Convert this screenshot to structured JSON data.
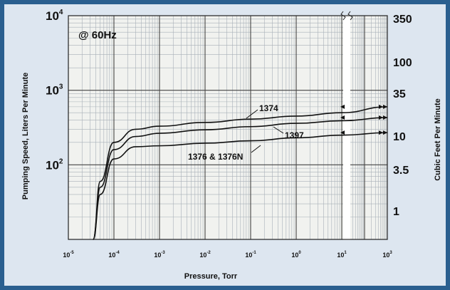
{
  "chart_data": {
    "type": "line",
    "annotation": "@ 60Hz",
    "xlabel": "Pressure, Torr",
    "ylabel_left": "Pumping Speed, Liters Per Minute",
    "ylabel_right": "Cubic Feet Per Minute",
    "x_scale": "log",
    "y_scale": "log",
    "xlim": [
      1e-05,
      1000
    ],
    "ylim": [
      10,
      10000
    ],
    "grid": true,
    "x_ticks": [
      {
        "base": "10",
        "exp": "-5"
      },
      {
        "base": "10",
        "exp": "-4"
      },
      {
        "base": "10",
        "exp": "-3"
      },
      {
        "base": "10",
        "exp": "-2"
      },
      {
        "base": "10",
        "exp": "-1"
      },
      {
        "base": "10",
        "exp": "0"
      },
      {
        "base": "10",
        "exp": "1"
      },
      {
        "base": "10",
        "exp": "3"
      }
    ],
    "y_ticks_left": [
      {
        "base": "10",
        "exp": "4"
      },
      {
        "base": "10",
        "exp": "3"
      },
      {
        "base": "10",
        "exp": "2"
      }
    ],
    "y_ticks_right": [
      "350",
      "100",
      "35",
      "10",
      "3.5",
      "1"
    ],
    "axis_break_x": 10,
    "series": [
      {
        "name": "1374",
        "x": [
          3.5e-05,
          5e-05,
          0.0001,
          0.0003,
          0.001,
          0.01,
          0.1,
          1,
          10,
          1000
        ],
        "y": [
          10,
          60,
          200,
          300,
          330,
          370,
          410,
          450,
          500,
          600
        ]
      },
      {
        "name": "1397",
        "x": [
          3.5e-05,
          5e-05,
          0.0001,
          0.0003,
          0.001,
          0.01,
          0.1,
          1,
          10,
          1000
        ],
        "y": [
          10,
          50,
          160,
          240,
          265,
          295,
          325,
          360,
          390,
          430
        ]
      },
      {
        "name": "1376 & 1376N",
        "x": [
          3.5e-05,
          5e-05,
          0.0001,
          0.0003,
          0.001,
          0.01,
          0.1,
          1,
          10,
          1000
        ],
        "y": [
          10,
          40,
          120,
          175,
          180,
          195,
          210,
          230,
          250,
          270
        ]
      }
    ],
    "colors": {
      "line": "#111111",
      "grid_major": "#444444",
      "grid_minor": "#a8b0b8",
      "plot_bg": "#f1f2ef"
    }
  }
}
